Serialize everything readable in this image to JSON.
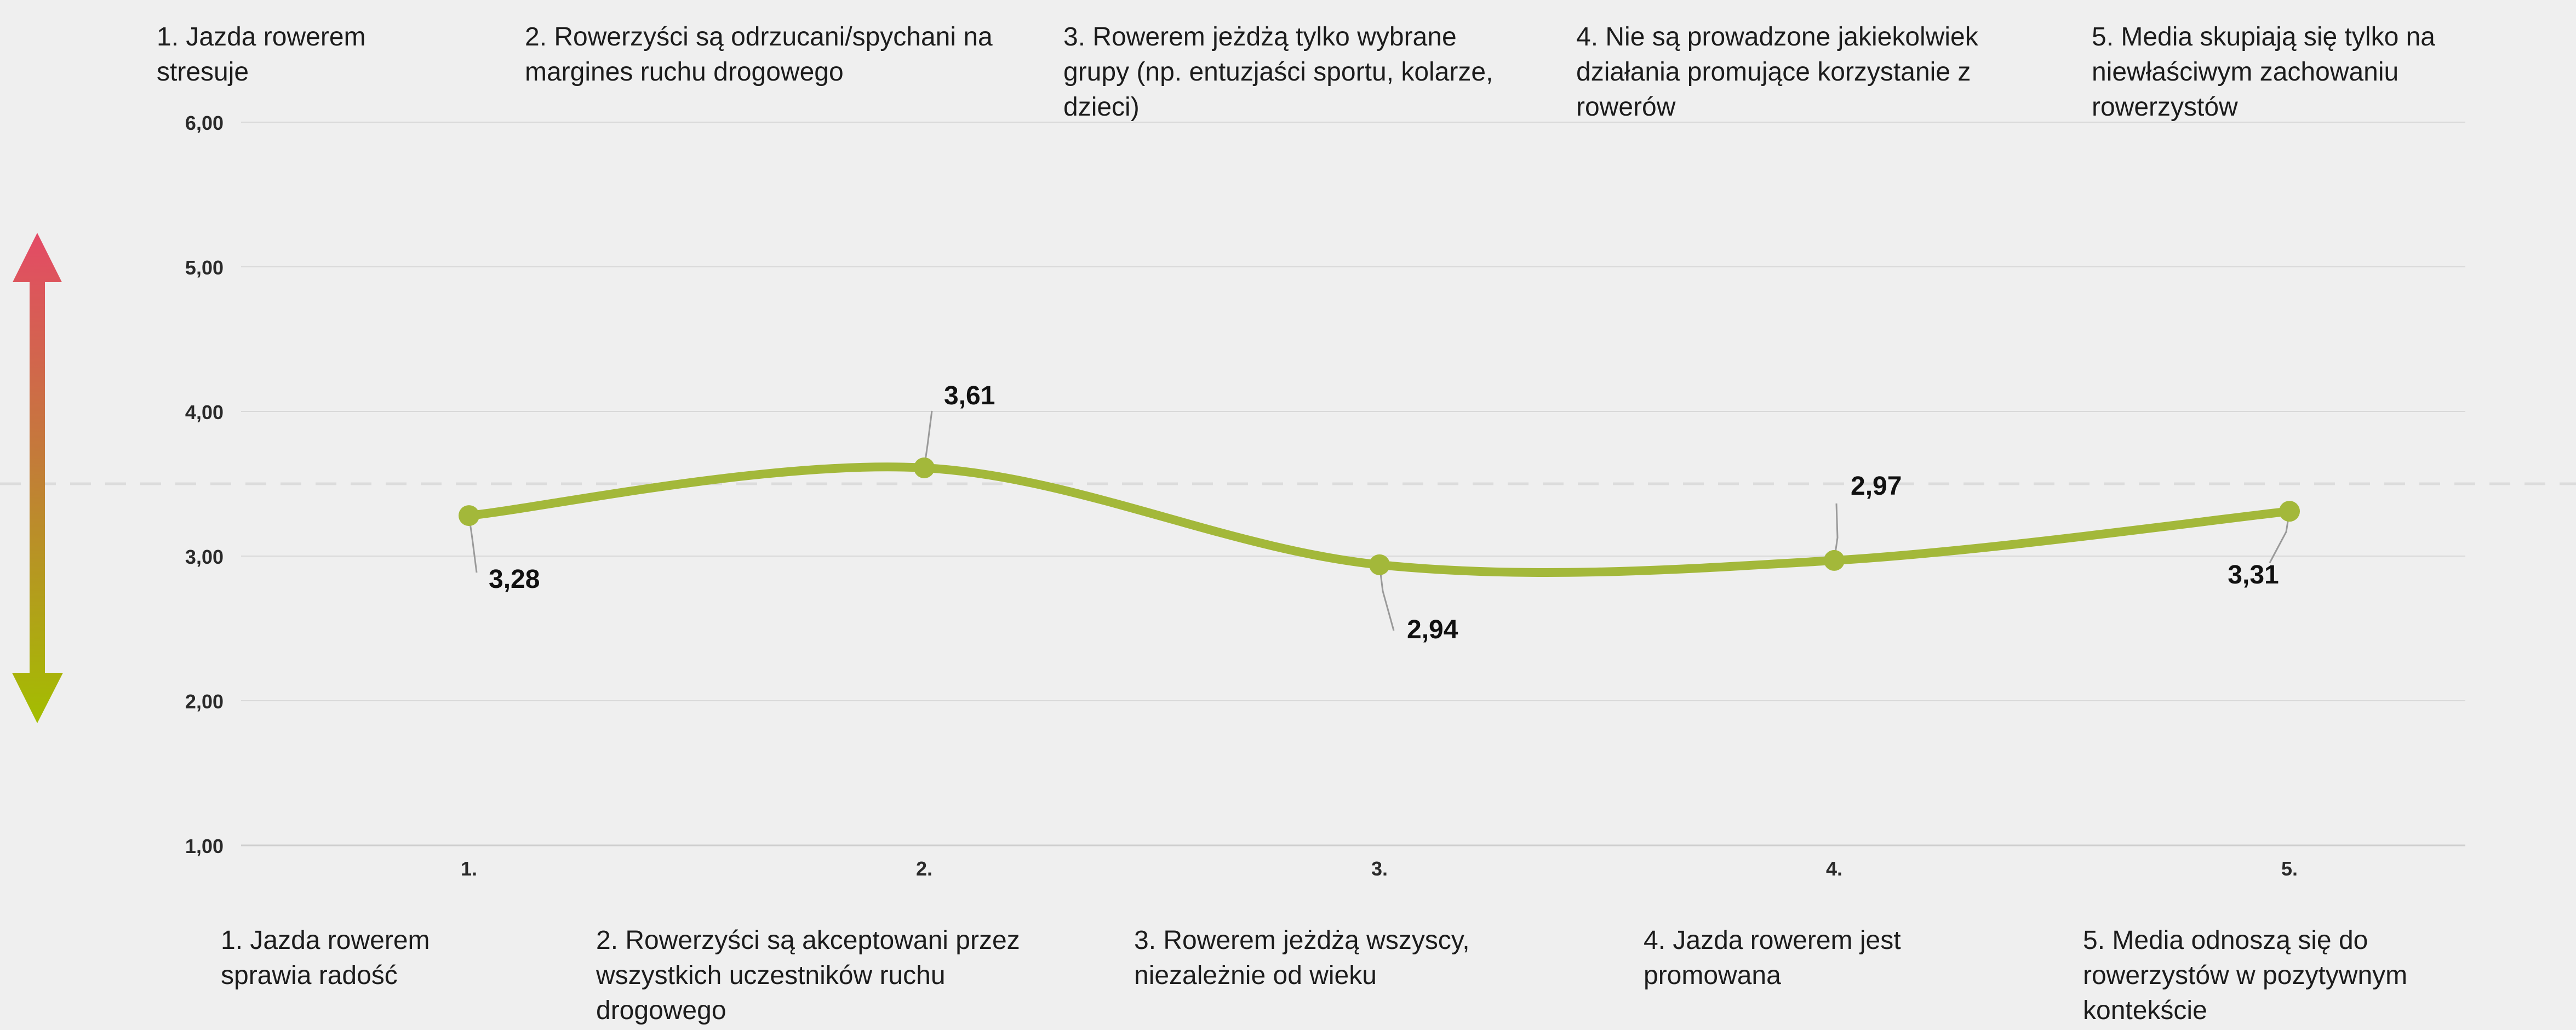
{
  "chart_data": {
    "type": "line",
    "categories": [
      "1.",
      "2.",
      "3.",
      "4.",
      "5."
    ],
    "series": [
      {
        "values": [
          3.28,
          3.61,
          2.94,
          2.97,
          3.31
        ],
        "labels": [
          "3,28",
          "3,61",
          "2,94",
          "2,97",
          "3,31"
        ],
        "color": "#a3b83a"
      }
    ],
    "ylim": [
      1,
      6
    ],
    "yticks": [
      "1,00",
      "2,00",
      "3,00",
      "4,00",
      "5,00",
      "6,00"
    ],
    "reference_line": 3.5,
    "grid": true,
    "gradient_arrow": {
      "top_color": "#e44a66",
      "bottom_color": "#a3be00"
    }
  },
  "top_statements": [
    "1. Jazda rowerem stresuje",
    "2. Rowerzyści są odrzucani/spychani na margines ruchu drogowego",
    "3. Rowerem jeżdżą tylko wybrane grupy (np. entuzjaści sportu, kolarze, dzieci)",
    "4. Nie są prowadzone jakiekolwiek działania promujące korzystanie z rowerów",
    "5. Media skupiają się tylko na niewłaściwym zachowaniu rowerzystów"
  ],
  "bottom_statements": [
    "1. Jazda rowerem sprawia radość",
    "2. Rowerzyści są akceptowani przez wszystkich uczestników ruchu drogowego",
    "3. Rowerem jeżdżą wszyscy, niezależnie od wieku",
    "4. Jazda rowerem jest promowana",
    "5. Media odnoszą się do rowerzystów w pozytywnym kontekście"
  ]
}
